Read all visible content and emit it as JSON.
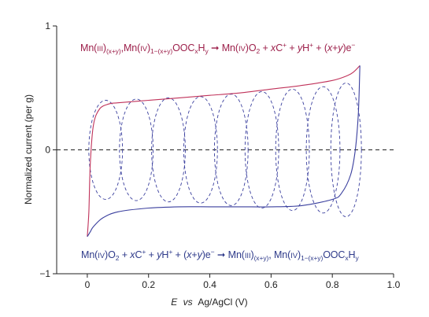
{
  "chart_data": {
    "type": "line",
    "title": "",
    "xlabel_prefix": "E",
    "xlabel_vs": "vs",
    "xlabel_rest": "Ag/AgCl (V)",
    "ylabel": "Normalized current (per g)",
    "xlim": [
      -0.1,
      1.0
    ],
    "ylim": [
      -1,
      1
    ],
    "x_ticks": [
      0,
      0.2,
      0.4,
      0.6,
      0.8,
      1.0
    ],
    "x_tick_labels": [
      "0",
      "0.2",
      "0.4",
      "0.6",
      "0.8",
      "1.0"
    ],
    "y_ticks": [
      -1,
      0,
      1
    ],
    "y_tick_labels": [
      "−1",
      "0",
      "1"
    ],
    "zero_reference_line": true,
    "grid": false,
    "colors": {
      "anodic": "#c0325a",
      "cathodic": "#3a3f9e",
      "dashed_ellipses": "#3a3f9e",
      "anodic_text": "#9c1f4a",
      "cathodic_text": "#2e3a8a"
    },
    "series": [
      {
        "x": [
          0.0,
          0.005,
          0.01,
          0.02,
          0.04,
          0.07,
          0.1,
          0.2,
          0.3,
          0.4,
          0.5,
          0.6,
          0.7,
          0.8,
          0.85,
          0.87,
          0.89
        ],
        "y": [
          -0.7,
          -0.5,
          -0.1,
          0.2,
          0.33,
          0.37,
          0.38,
          0.4,
          0.42,
          0.44,
          0.46,
          0.49,
          0.52,
          0.56,
          0.6,
          0.63,
          0.68
        ]
      },
      {
        "x": [
          0.89,
          0.885,
          0.875,
          0.86,
          0.83,
          0.8,
          0.7,
          0.6,
          0.5,
          0.4,
          0.3,
          0.2,
          0.1,
          0.05,
          0.02,
          0.01,
          0.0
        ],
        "y": [
          0.68,
          0.3,
          0.0,
          -0.2,
          -0.35,
          -0.4,
          -0.45,
          -0.46,
          -0.46,
          -0.46,
          -0.46,
          -0.47,
          -0.5,
          -0.55,
          -0.62,
          -0.66,
          -0.7
        ]
      }
    ],
    "ellipses": [
      {
        "center_x": 0.06,
        "center_y": 0.0,
        "half_width": 0.055,
        "half_height": 0.4
      },
      {
        "center_x": 0.16,
        "center_y": 0.0,
        "half_width": 0.055,
        "half_height": 0.41
      },
      {
        "center_x": 0.265,
        "center_y": 0.0,
        "half_width": 0.055,
        "half_height": 0.42
      },
      {
        "center_x": 0.37,
        "center_y": 0.0,
        "half_width": 0.055,
        "half_height": 0.43
      },
      {
        "center_x": 0.47,
        "center_y": 0.0,
        "half_width": 0.055,
        "half_height": 0.45
      },
      {
        "center_x": 0.57,
        "center_y": 0.0,
        "half_width": 0.055,
        "half_height": 0.47
      },
      {
        "center_x": 0.67,
        "center_y": 0.0,
        "half_width": 0.055,
        "half_height": 0.49
      },
      {
        "center_x": 0.77,
        "center_y": 0.0,
        "half_width": 0.055,
        "half_height": 0.51
      },
      {
        "center_x": 0.845,
        "center_y": 0.0,
        "half_width": 0.05,
        "half_height": 0.54
      }
    ],
    "annotations": {
      "top": {
        "mn": "Mn(",
        "ox3": "III",
        "close": ")",
        "sub1": "(x+y)",
        "comma": ",",
        "mn2": "Mn(",
        "ox4": "IV",
        "close2": ")",
        "sub2": "1−(x+y)",
        "ooc": "OOC",
        "subx": "x",
        "h": "H",
        "suby": "y",
        "arrow": "➞",
        "product": " Mn(",
        "ox4b": "IV",
        "product2": ")O",
        "sub_o": "2",
        "plus1": " + ",
        "x": "x",
        "c": "C",
        "sup_plus1": "+",
        "plus2": " + ",
        "y": "y",
        "hplus": "H",
        "sup_plus2": "+",
        "plus3": " + (",
        "xy": "x",
        "plusy": "+",
        "yy": "y",
        "e": ")e",
        "sup_minus": "−"
      },
      "bottom": {
        "mn": "Mn(",
        "ox4": "IV",
        "close": ")O",
        "sub_o": "2",
        "plus1": " + ",
        "x": "x",
        "c": "C",
        "sup_plus1": "+",
        "plus2": " + ",
        "y": "y",
        "hplus": "H",
        "sup_plus2": "+",
        "plus3": " + (",
        "xy": "x",
        "plusy": "+",
        "yy": "y",
        "e": ")e",
        "sup_minus": "−",
        "arrow": " ➞ ",
        "mn2": "Mn(",
        "ox3": "III",
        "close2": ")",
        "sub1": "(x+y)",
        "comma": ",",
        "mn3": " Mn(",
        "ox4b": "IV",
        "close3": ")",
        "sub2": "1−(x+y)",
        "ooc": "OOC",
        "subx": "x",
        "h": "H",
        "suby": "y"
      }
    }
  }
}
